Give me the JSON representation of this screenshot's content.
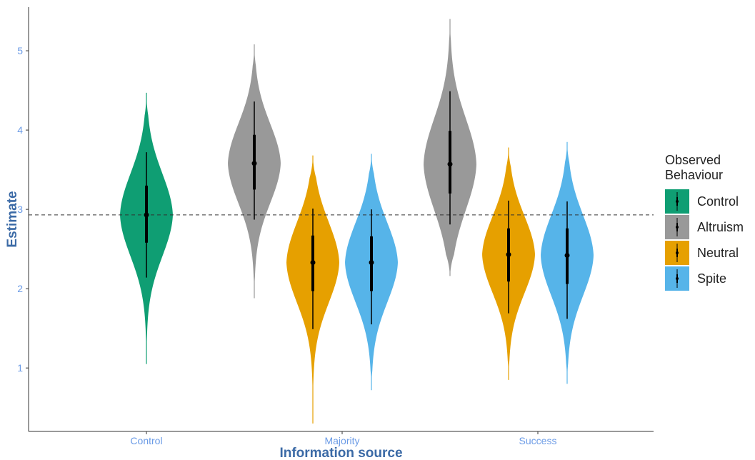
{
  "chart_data": {
    "type": "violin",
    "xlabel": "Information source",
    "ylabel": "Estimate",
    "categories": [
      "Control",
      "Majority",
      "Success"
    ],
    "ylim": [
      0.2,
      5.55
    ],
    "yticks": [
      1,
      2,
      3,
      4,
      5
    ],
    "reference_line": {
      "y": 2.93,
      "style": "dashed"
    },
    "grid": false,
    "legend": {
      "title": "Observed Behaviour",
      "position": "right",
      "entries": [
        {
          "label": "Control",
          "color": "#0f9e73"
        },
        {
          "label": "Altruism",
          "color": "#999999"
        },
        {
          "label": "Neutral",
          "color": "#e6a000"
        },
        {
          "label": "Spite",
          "color": "#56b4e9"
        }
      ]
    },
    "series": [
      {
        "name": "Control",
        "category": "Control",
        "slot": 0,
        "color": "#0f9e73",
        "median": 2.93,
        "inner": [
          2.58,
          3.3
        ],
        "outer": [
          2.14,
          3.72
        ],
        "range": [
          1.05,
          4.47
        ]
      },
      {
        "name": "Altruism",
        "category": "Majority",
        "slot": -1.5,
        "color": "#999999",
        "median": 3.58,
        "inner": [
          3.25,
          3.94
        ],
        "outer": [
          2.87,
          4.36
        ],
        "range": [
          1.88,
          5.08
        ]
      },
      {
        "name": "Neutral",
        "category": "Majority",
        "slot": -0.5,
        "color": "#e6a000",
        "median": 2.33,
        "inner": [
          1.97,
          2.67
        ],
        "outer": [
          1.49,
          3.01
        ],
        "range": [
          0.3,
          3.68
        ]
      },
      {
        "name": "Spite",
        "category": "Majority",
        "slot": 0.5,
        "color": "#56b4e9",
        "median": 2.33,
        "inner": [
          1.97,
          2.66
        ],
        "outer": [
          1.55,
          3.0
        ],
        "range": [
          0.72,
          3.7
        ]
      },
      {
        "name": "Altruism",
        "category": "Success",
        "slot": -1.5,
        "color": "#999999",
        "median": 3.57,
        "inner": [
          3.2,
          3.99
        ],
        "outer": [
          2.81,
          4.49
        ],
        "range": [
          2.16,
          5.4
        ]
      },
      {
        "name": "Neutral",
        "category": "Success",
        "slot": -0.5,
        "color": "#e6a000",
        "median": 2.43,
        "inner": [
          2.09,
          2.76
        ],
        "outer": [
          1.69,
          3.11
        ],
        "range": [
          0.85,
          3.78
        ]
      },
      {
        "name": "Spite",
        "category": "Success",
        "slot": 0.5,
        "color": "#56b4e9",
        "median": 2.42,
        "inner": [
          2.06,
          2.76
        ],
        "outer": [
          1.62,
          3.1
        ],
        "range": [
          0.8,
          3.85
        ]
      }
    ],
    "colors": {
      "axis": "#333333",
      "tick_label": "#6b9be6",
      "axis_title": "#3b6aa6",
      "interval": "#000000"
    }
  }
}
